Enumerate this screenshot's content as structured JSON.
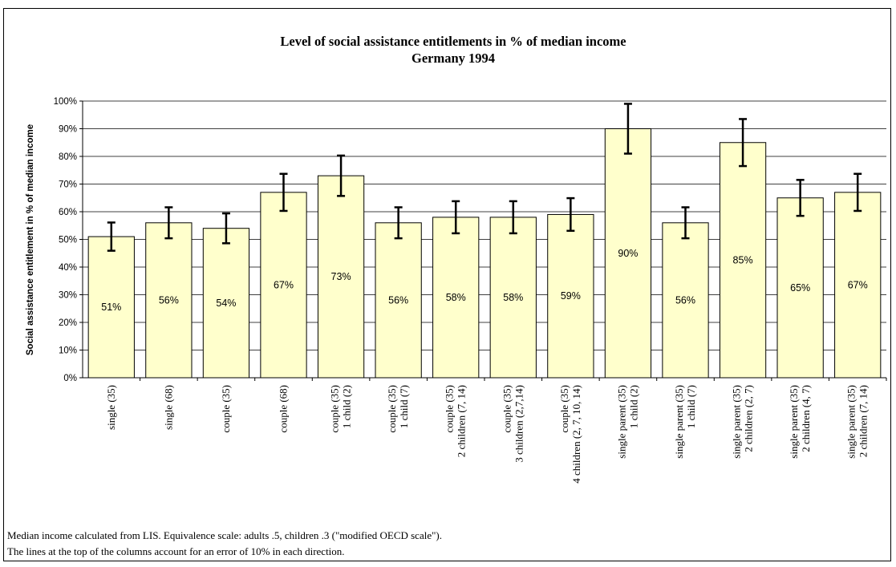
{
  "chart_data": {
    "type": "bar",
    "title": [
      "Level of social assistance entitlements in % of median income",
      "Germany 1994"
    ],
    "ylabel": "Social assistance entitlement in % of median income",
    "xlabel": "",
    "ylim": [
      0,
      100
    ],
    "y_ticks": [
      "0%",
      "10%",
      "20%",
      "30%",
      "40%",
      "50%",
      "60%",
      "70%",
      "80%",
      "90%",
      "100%"
    ],
    "grid": true,
    "legend": "none",
    "bar_color": "#ffffcc",
    "categories": [
      [
        "single (35)"
      ],
      [
        "single (68)"
      ],
      [
        "couple (35)"
      ],
      [
        "couple (68)"
      ],
      [
        "couple (35)",
        "1 child (2)"
      ],
      [
        "couple (35)",
        "1 child (7)"
      ],
      [
        "couple (35)",
        "2 children (7, 14)"
      ],
      [
        "couple (35)",
        "3 children (2,7,14)"
      ],
      [
        "couple (35)",
        "4 children (2, 7, 10, 14)"
      ],
      [
        "single parent (35)",
        "1 child (2)"
      ],
      [
        "single parent (35)",
        "1 child (7)"
      ],
      [
        "single parent (35)",
        "2 children (2, 7)"
      ],
      [
        "single parent (35)",
        "2 children (4, 7)"
      ],
      [
        "single parent (35)",
        "2 children (7, 14)"
      ]
    ],
    "values": [
      51,
      56,
      54,
      67,
      73,
      56,
      58,
      58,
      59,
      90,
      56,
      85,
      65,
      67
    ],
    "data_labels": [
      "51%",
      "56%",
      "54%",
      "67%",
      "73%",
      "56%",
      "58%",
      "58%",
      "59%",
      "90%",
      "56%",
      "85%",
      "65%",
      "67%"
    ],
    "error_bars_pct": 10
  },
  "footnotes": [
    "Median income calculated from LIS. Equivalence scale: adults .5, children .3 (\"modified OECD scale\").",
    "The lines at the top of the columns account for an error of 10% in each direction."
  ]
}
